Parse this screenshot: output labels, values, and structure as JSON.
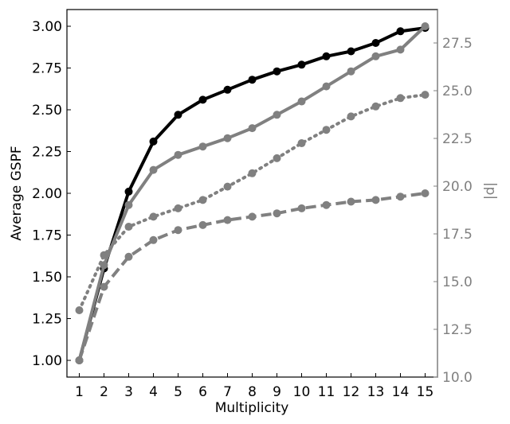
{
  "chart_data": {
    "type": "line",
    "xlabel": "Multiplicity",
    "ylabel_left": "Average GSPF",
    "ylabel_right": "|d|",
    "x": [
      1,
      2,
      3,
      4,
      5,
      6,
      7,
      8,
      9,
      10,
      11,
      12,
      13,
      14,
      15
    ],
    "x_ticks": [
      "1",
      "2",
      "3",
      "4",
      "5",
      "6",
      "7",
      "8",
      "9",
      "10",
      "11",
      "12",
      "13",
      "14",
      "15"
    ],
    "xlim": [
      0.5,
      15.5
    ],
    "ylim_left": [
      0.9,
      3.1
    ],
    "ylim_right": [
      10.0,
      29.25
    ],
    "left_ticks": [
      "1.00",
      "1.25",
      "1.50",
      "1.75",
      "2.00",
      "2.25",
      "2.50",
      "2.75",
      "3.00"
    ],
    "right_ticks": [
      "10.0",
      "12.5",
      "15.0",
      "17.5",
      "20.0",
      "22.5",
      "25.0",
      "27.5"
    ],
    "grid": false,
    "colors": {
      "black": "#000000",
      "gray": "#808080",
      "right_axis": "#808080"
    },
    "series": [
      {
        "axis": "left",
        "color": "#000000",
        "linestyle": "solid",
        "values": [
          1.0,
          1.55,
          2.01,
          2.31,
          2.47,
          2.56,
          2.62,
          2.68,
          2.73,
          2.77,
          2.82,
          2.85,
          2.9,
          2.97,
          2.99
        ]
      },
      {
        "axis": "left",
        "color": "#808080",
        "linestyle": "solid",
        "values": [
          1.0,
          1.57,
          1.93,
          2.14,
          2.23,
          2.28,
          2.33,
          2.39,
          2.47,
          2.55,
          2.64,
          2.73,
          2.82,
          2.86,
          3.0
        ]
      },
      {
        "axis": "left",
        "color": "#808080",
        "linestyle": "dotted",
        "values": [
          1.3,
          1.63,
          1.8,
          1.86,
          1.91,
          1.96,
          2.04,
          2.12,
          2.21,
          2.3,
          2.38,
          2.46,
          2.52,
          2.57,
          2.59
        ]
      },
      {
        "axis": "left",
        "color": "#808080",
        "linestyle": "dashed",
        "values": [
          1.0,
          1.44,
          1.62,
          1.72,
          1.78,
          1.81,
          1.84,
          1.86,
          1.88,
          1.91,
          1.93,
          1.95,
          1.96,
          1.98,
          2.0
        ]
      }
    ]
  }
}
